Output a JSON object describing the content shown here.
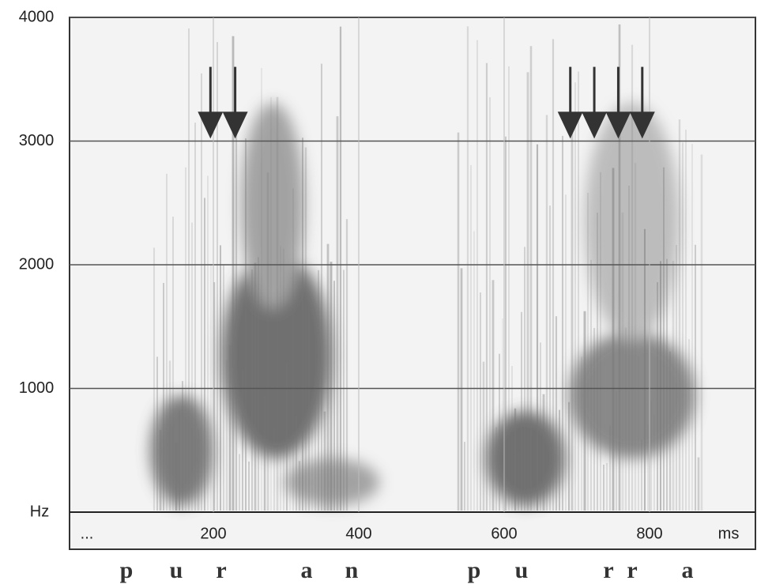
{
  "chart_data": {
    "type": "spectrogram",
    "y_label": "Hz",
    "x_label": "ms",
    "x_start_label": "...",
    "ylim": [
      0,
      4000
    ],
    "yticks": [
      1000,
      2000,
      3000,
      4000
    ],
    "xlim": [
      0,
      945
    ],
    "xticks": [
      200,
      400,
      600,
      800
    ],
    "arrows": {
      "x": [
        196,
        230,
        691,
        724,
        757,
        790
      ],
      "tip": 3020,
      "tail": 3600,
      "color": "#333333"
    },
    "segments": [
      "p",
      "u",
      "r",
      "a",
      "n",
      "p",
      "u",
      "r",
      "r",
      "a"
    ],
    "grid": true
  }
}
